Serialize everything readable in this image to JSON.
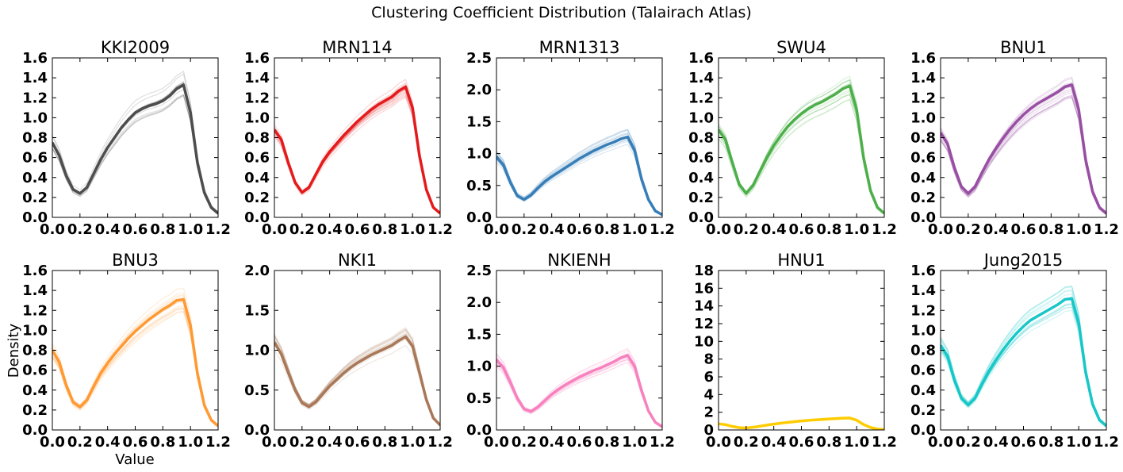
{
  "figure": {
    "title": "Clustering Coefficient Distribution (Talairach Atlas)",
    "xlabel": "Value",
    "ylabel": "Density"
  },
  "chart_data": [
    {
      "type": "line",
      "title": "KKI2009",
      "color": "#4d4d4d",
      "xlim": [
        0,
        1.2
      ],
      "ylim": [
        0,
        1.6
      ],
      "xticks": [
        "0.0",
        "0.2",
        "0.4",
        "0.6",
        "0.8",
        "1.0",
        "1.2"
      ],
      "yticks": [
        "0.0",
        "0.2",
        "0.4",
        "0.6",
        "0.8",
        "1.0",
        "1.2",
        "1.4",
        "1.6"
      ],
      "x": [
        0,
        0.05,
        0.1,
        0.15,
        0.2,
        0.25,
        0.3,
        0.35,
        0.4,
        0.45,
        0.5,
        0.55,
        0.6,
        0.65,
        0.7,
        0.75,
        0.8,
        0.85,
        0.9,
        0.95,
        1.0,
        1.05,
        1.1,
        1.15,
        1.2
      ],
      "series": [
        {
          "values": [
            0.75,
            0.62,
            0.42,
            0.28,
            0.24,
            0.3,
            0.44,
            0.58,
            0.7,
            0.8,
            0.9,
            0.98,
            1.05,
            1.09,
            1.12,
            1.14,
            1.17,
            1.22,
            1.29,
            1.33,
            1.05,
            0.55,
            0.25,
            0.1,
            0.04
          ]
        }
      ]
    },
    {
      "type": "line",
      "title": "MRN114",
      "color": "#e41a1c",
      "xlim": [
        0,
        1.2
      ],
      "ylim": [
        0,
        1.6
      ],
      "xticks": [
        "0.0",
        "0.2",
        "0.4",
        "0.6",
        "0.8",
        "1.0",
        "1.2"
      ],
      "yticks": [
        "0.0",
        "0.2",
        "0.4",
        "0.6",
        "0.8",
        "1.0",
        "1.2",
        "1.4",
        "1.6"
      ],
      "x": [
        0,
        0.05,
        0.1,
        0.15,
        0.2,
        0.25,
        0.3,
        0.35,
        0.4,
        0.45,
        0.5,
        0.55,
        0.6,
        0.65,
        0.7,
        0.75,
        0.8,
        0.85,
        0.9,
        0.95,
        1.0,
        1.05,
        1.1,
        1.15,
        1.2
      ],
      "series": [
        {
          "values": [
            0.88,
            0.78,
            0.55,
            0.35,
            0.25,
            0.3,
            0.43,
            0.56,
            0.66,
            0.74,
            0.82,
            0.89,
            0.96,
            1.02,
            1.08,
            1.13,
            1.17,
            1.21,
            1.27,
            1.31,
            1.1,
            0.62,
            0.28,
            0.1,
            0.04
          ]
        }
      ]
    },
    {
      "type": "line",
      "title": "MRN1313",
      "color": "#377eb8",
      "xlim": [
        0,
        1.2
      ],
      "ylim": [
        0,
        2.5
      ],
      "xticks": [
        "0.0",
        "0.2",
        "0.4",
        "0.6",
        "0.8",
        "1.0",
        "1.2"
      ],
      "yticks": [
        "0.0",
        "0.5",
        "1.0",
        "1.5",
        "2.0",
        "2.5"
      ],
      "x": [
        0,
        0.05,
        0.1,
        0.15,
        0.2,
        0.25,
        0.3,
        0.35,
        0.4,
        0.45,
        0.5,
        0.55,
        0.6,
        0.65,
        0.7,
        0.75,
        0.8,
        0.85,
        0.9,
        0.95,
        1.0,
        1.05,
        1.1,
        1.15,
        1.2
      ],
      "series": [
        {
          "values": [
            0.95,
            0.82,
            0.55,
            0.34,
            0.28,
            0.35,
            0.46,
            0.56,
            0.64,
            0.71,
            0.78,
            0.85,
            0.92,
            0.98,
            1.04,
            1.09,
            1.14,
            1.18,
            1.23,
            1.26,
            1.05,
            0.6,
            0.28,
            0.1,
            0.04
          ]
        }
      ]
    },
    {
      "type": "line",
      "title": "SWU4",
      "color": "#4daf4a",
      "xlim": [
        0,
        1.2
      ],
      "ylim": [
        0,
        1.6
      ],
      "xticks": [
        "0.0",
        "0.2",
        "0.4",
        "0.6",
        "0.8",
        "1.0",
        "1.2"
      ],
      "yticks": [
        "0.0",
        "0.2",
        "0.4",
        "0.6",
        "0.8",
        "1.0",
        "1.2",
        "1.4",
        "1.6"
      ],
      "x": [
        0,
        0.05,
        0.1,
        0.15,
        0.2,
        0.25,
        0.3,
        0.35,
        0.4,
        0.45,
        0.5,
        0.55,
        0.6,
        0.65,
        0.7,
        0.75,
        0.8,
        0.85,
        0.9,
        0.95,
        1.0,
        1.05,
        1.1,
        1.15,
        1.2
      ],
      "series": [
        {
          "values": [
            0.88,
            0.78,
            0.55,
            0.33,
            0.24,
            0.32,
            0.46,
            0.6,
            0.72,
            0.82,
            0.91,
            0.98,
            1.04,
            1.09,
            1.13,
            1.16,
            1.2,
            1.24,
            1.29,
            1.32,
            1.08,
            0.6,
            0.27,
            0.1,
            0.04
          ]
        }
      ]
    },
    {
      "type": "line",
      "title": "BNU1",
      "color": "#984ea3",
      "xlim": [
        0,
        1.2
      ],
      "ylim": [
        0,
        1.6
      ],
      "xticks": [
        "0.0",
        "0.2",
        "0.4",
        "0.6",
        "0.8",
        "1.0",
        "1.2"
      ],
      "yticks": [
        "0.0",
        "0.2",
        "0.4",
        "0.6",
        "0.8",
        "1.0",
        "1.2",
        "1.4",
        "1.6"
      ],
      "x": [
        0,
        0.05,
        0.1,
        0.15,
        0.2,
        0.25,
        0.3,
        0.35,
        0.4,
        0.45,
        0.5,
        0.55,
        0.6,
        0.65,
        0.7,
        0.75,
        0.8,
        0.85,
        0.9,
        0.95,
        1.0,
        1.05,
        1.1,
        1.15,
        1.2
      ],
      "series": [
        {
          "values": [
            0.85,
            0.74,
            0.5,
            0.31,
            0.24,
            0.31,
            0.45,
            0.58,
            0.69,
            0.79,
            0.88,
            0.96,
            1.03,
            1.09,
            1.14,
            1.18,
            1.22,
            1.26,
            1.31,
            1.33,
            1.08,
            0.58,
            0.26,
            0.1,
            0.04
          ]
        }
      ]
    },
    {
      "type": "line",
      "title": "BNU3",
      "color": "#ff9933",
      "xlim": [
        0,
        1.2
      ],
      "ylim": [
        0,
        1.6
      ],
      "xticks": [
        "0.0",
        "0.2",
        "0.4",
        "0.6",
        "0.8",
        "1.0",
        "1.2"
      ],
      "yticks": [
        "0.0",
        "0.2",
        "0.4",
        "0.6",
        "0.8",
        "1.0",
        "1.2",
        "1.4",
        "1.6"
      ],
      "x": [
        0,
        0.05,
        0.1,
        0.15,
        0.2,
        0.25,
        0.3,
        0.35,
        0.4,
        0.45,
        0.5,
        0.55,
        0.6,
        0.65,
        0.7,
        0.75,
        0.8,
        0.85,
        0.9,
        0.95,
        1.0,
        1.05,
        1.1,
        1.15,
        1.2
      ],
      "series": [
        {
          "values": [
            0.8,
            0.68,
            0.45,
            0.28,
            0.23,
            0.3,
            0.44,
            0.57,
            0.67,
            0.76,
            0.84,
            0.92,
            0.99,
            1.05,
            1.11,
            1.16,
            1.21,
            1.25,
            1.3,
            1.31,
            1.05,
            0.57,
            0.25,
            0.1,
            0.04
          ]
        }
      ]
    },
    {
      "type": "line",
      "title": "NKI1",
      "color": "#a87858",
      "xlim": [
        0,
        1.2
      ],
      "ylim": [
        0,
        2.0
      ],
      "xticks": [
        "0.0",
        "0.2",
        "0.4",
        "0.6",
        "0.8",
        "1.0",
        "1.2"
      ],
      "yticks": [
        "0.0",
        "0.5",
        "1.0",
        "1.5",
        "2.0"
      ],
      "x": [
        0,
        0.05,
        0.1,
        0.15,
        0.2,
        0.25,
        0.3,
        0.35,
        0.4,
        0.45,
        0.5,
        0.55,
        0.6,
        0.65,
        0.7,
        0.75,
        0.8,
        0.85,
        0.9,
        0.95,
        1.0,
        1.05,
        1.1,
        1.15,
        1.2
      ],
      "series": [
        {
          "values": [
            1.1,
            0.95,
            0.72,
            0.5,
            0.34,
            0.29,
            0.35,
            0.45,
            0.55,
            0.63,
            0.71,
            0.78,
            0.84,
            0.89,
            0.94,
            0.98,
            1.02,
            1.06,
            1.12,
            1.17,
            1.05,
            0.72,
            0.38,
            0.15,
            0.06
          ]
        }
      ]
    },
    {
      "type": "line",
      "title": "NKIENH",
      "color": "#f781bf",
      "xlim": [
        0,
        1.2
      ],
      "ylim": [
        0,
        2.5
      ],
      "xticks": [
        "0.0",
        "0.2",
        "0.4",
        "0.6",
        "0.8",
        "1.0",
        "1.2"
      ],
      "yticks": [
        "0.0",
        "0.5",
        "1.0",
        "1.5",
        "2.0",
        "2.5"
      ],
      "x": [
        0,
        0.05,
        0.1,
        0.15,
        0.2,
        0.25,
        0.3,
        0.35,
        0.4,
        0.45,
        0.5,
        0.55,
        0.6,
        0.65,
        0.7,
        0.75,
        0.8,
        0.85,
        0.9,
        0.95,
        1.0,
        1.05,
        1.1,
        1.15,
        1.2
      ],
      "series": [
        {
          "values": [
            1.1,
            0.98,
            0.75,
            0.5,
            0.33,
            0.29,
            0.36,
            0.46,
            0.56,
            0.64,
            0.71,
            0.77,
            0.83,
            0.88,
            0.93,
            0.97,
            1.02,
            1.07,
            1.13,
            1.17,
            1.0,
            0.62,
            0.3,
            0.12,
            0.05
          ]
        }
      ]
    },
    {
      "type": "line",
      "title": "HNU1",
      "color": "#ffcc00",
      "xlim": [
        0,
        1.2
      ],
      "ylim": [
        0,
        18
      ],
      "xticks": [
        "0.0",
        "0.2",
        "0.4",
        "0.6",
        "0.8",
        "1.0",
        "1.2"
      ],
      "yticks": [
        "0",
        "2",
        "4",
        "6",
        "8",
        "10",
        "12",
        "14",
        "16",
        "18"
      ],
      "x": [
        0,
        0.05,
        0.1,
        0.15,
        0.2,
        0.25,
        0.3,
        0.35,
        0.4,
        0.45,
        0.5,
        0.55,
        0.6,
        0.65,
        0.7,
        0.75,
        0.8,
        0.85,
        0.9,
        0.95,
        1.0,
        1.05,
        1.1,
        1.15,
        1.2
      ],
      "series": [
        {
          "values": [
            0.7,
            0.6,
            0.4,
            0.26,
            0.22,
            0.3,
            0.42,
            0.55,
            0.66,
            0.76,
            0.85,
            0.94,
            1.02,
            1.08,
            1.14,
            1.19,
            1.24,
            1.29,
            1.33,
            1.35,
            1.1,
            0.62,
            0.28,
            0.1,
            0.04
          ]
        }
      ]
    },
    {
      "type": "line",
      "title": "Jung2015",
      "color": "#17c7c8",
      "xlim": [
        0,
        1.2
      ],
      "ylim": [
        0,
        1.6
      ],
      "xticks": [
        "0.0",
        "0.2",
        "0.4",
        "0.6",
        "0.8",
        "1.0",
        "1.2"
      ],
      "yticks": [
        "0.0",
        "0.2",
        "0.4",
        "0.6",
        "0.8",
        "1.0",
        "1.2",
        "1.4",
        "1.6"
      ],
      "x": [
        0,
        0.05,
        0.1,
        0.15,
        0.2,
        0.25,
        0.3,
        0.35,
        0.4,
        0.45,
        0.5,
        0.55,
        0.6,
        0.65,
        0.7,
        0.75,
        0.8,
        0.85,
        0.9,
        0.95,
        1.0,
        1.05,
        1.1,
        1.15,
        1.2
      ],
      "series": [
        {
          "values": [
            0.85,
            0.74,
            0.5,
            0.32,
            0.25,
            0.32,
            0.46,
            0.59,
            0.7,
            0.8,
            0.89,
            0.97,
            1.04,
            1.1,
            1.14,
            1.18,
            1.22,
            1.26,
            1.31,
            1.32,
            1.07,
            0.58,
            0.26,
            0.1,
            0.04
          ]
        }
      ]
    }
  ]
}
